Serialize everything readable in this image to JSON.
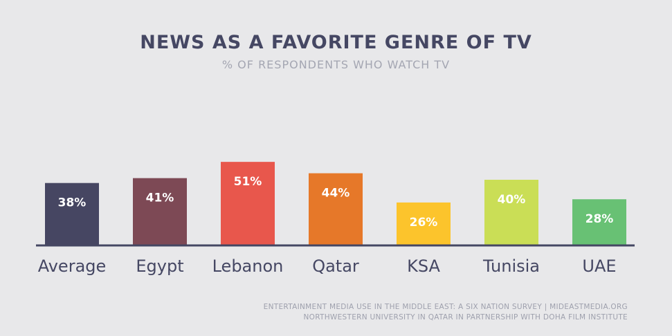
{
  "chart_data": {
    "type": "bar",
    "title": "NEWS AS A FAVORITE GENRE OF TV",
    "subtitle": "% OF RESPONDENTS WHO WATCH TV",
    "categories": [
      "Average",
      "Egypt",
      "Lebanon",
      "Qatar",
      "KSA",
      "Tunisia",
      "UAE"
    ],
    "values": [
      38,
      41,
      51,
      44,
      26,
      40,
      28
    ],
    "value_labels": [
      "38%",
      "41%",
      "51%",
      "44%",
      "26%",
      "40%",
      "28%"
    ],
    "colors": [
      "#464662",
      "#7d4955",
      "#e8574c",
      "#e67829",
      "#fcc42c",
      "#cade56",
      "#68c174"
    ],
    "xlabel": "",
    "ylabel": "",
    "ylim": [
      0,
      51
    ],
    "grid": false,
    "legend": "none"
  },
  "footer": {
    "line1": "ENTERTAINMENT MEDIA USE IN THE MIDDLE EAST: A SIX NATION SURVEY | MIDEASTMEDIA.ORG",
    "line2": "NORTHWESTERN UNIVERSITY IN QATAR IN PARTNERSHIP WITH DOHA FILM INSTITUTE"
  }
}
